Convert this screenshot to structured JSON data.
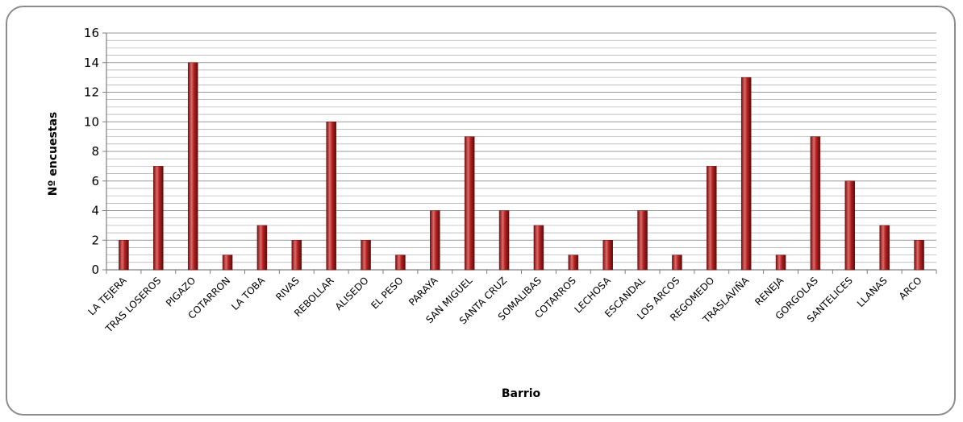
{
  "chart_data": {
    "type": "bar",
    "title": "",
    "xlabel": "Barrio",
    "ylabel": "Nº encuestas",
    "ylim": [
      0,
      16
    ],
    "y_major_ticks": [
      0,
      2,
      4,
      6,
      8,
      10,
      12,
      14,
      16
    ],
    "y_minor_step": 0.5,
    "grid": true,
    "legend": "none",
    "categories": [
      "LA TEJERA",
      "TRAS LOSEROS",
      "PIGAZO",
      "COTARRON",
      "LA TOBA",
      "RIVAS",
      "REBOLLAR",
      "ALISEDO",
      "EL PESO",
      "PARAYA",
      "SAN MIGUEL",
      "SANTA CRUZ",
      "SOMALIBAS",
      "COTARROS",
      "LECHOSA",
      "ESCANDAL",
      "LOS ARCOS",
      "REGOMEDO",
      "TRASLAVIÑA",
      "RENEJA",
      "GORGOLAS",
      "SANTELICES",
      "LLANAS",
      "ARCO"
    ],
    "values": [
      2,
      7,
      14,
      1,
      3,
      2,
      10,
      2,
      1,
      4,
      9,
      4,
      3,
      1,
      2,
      4,
      1,
      7,
      13,
      1,
      9,
      6,
      3,
      2
    ],
    "colors": {
      "bar": "#b22222",
      "bar_dark": "#6e0f0f",
      "bar_light": "#e06a6a",
      "grid": "#9a9a9a",
      "border": "#8c8c8c"
    }
  }
}
